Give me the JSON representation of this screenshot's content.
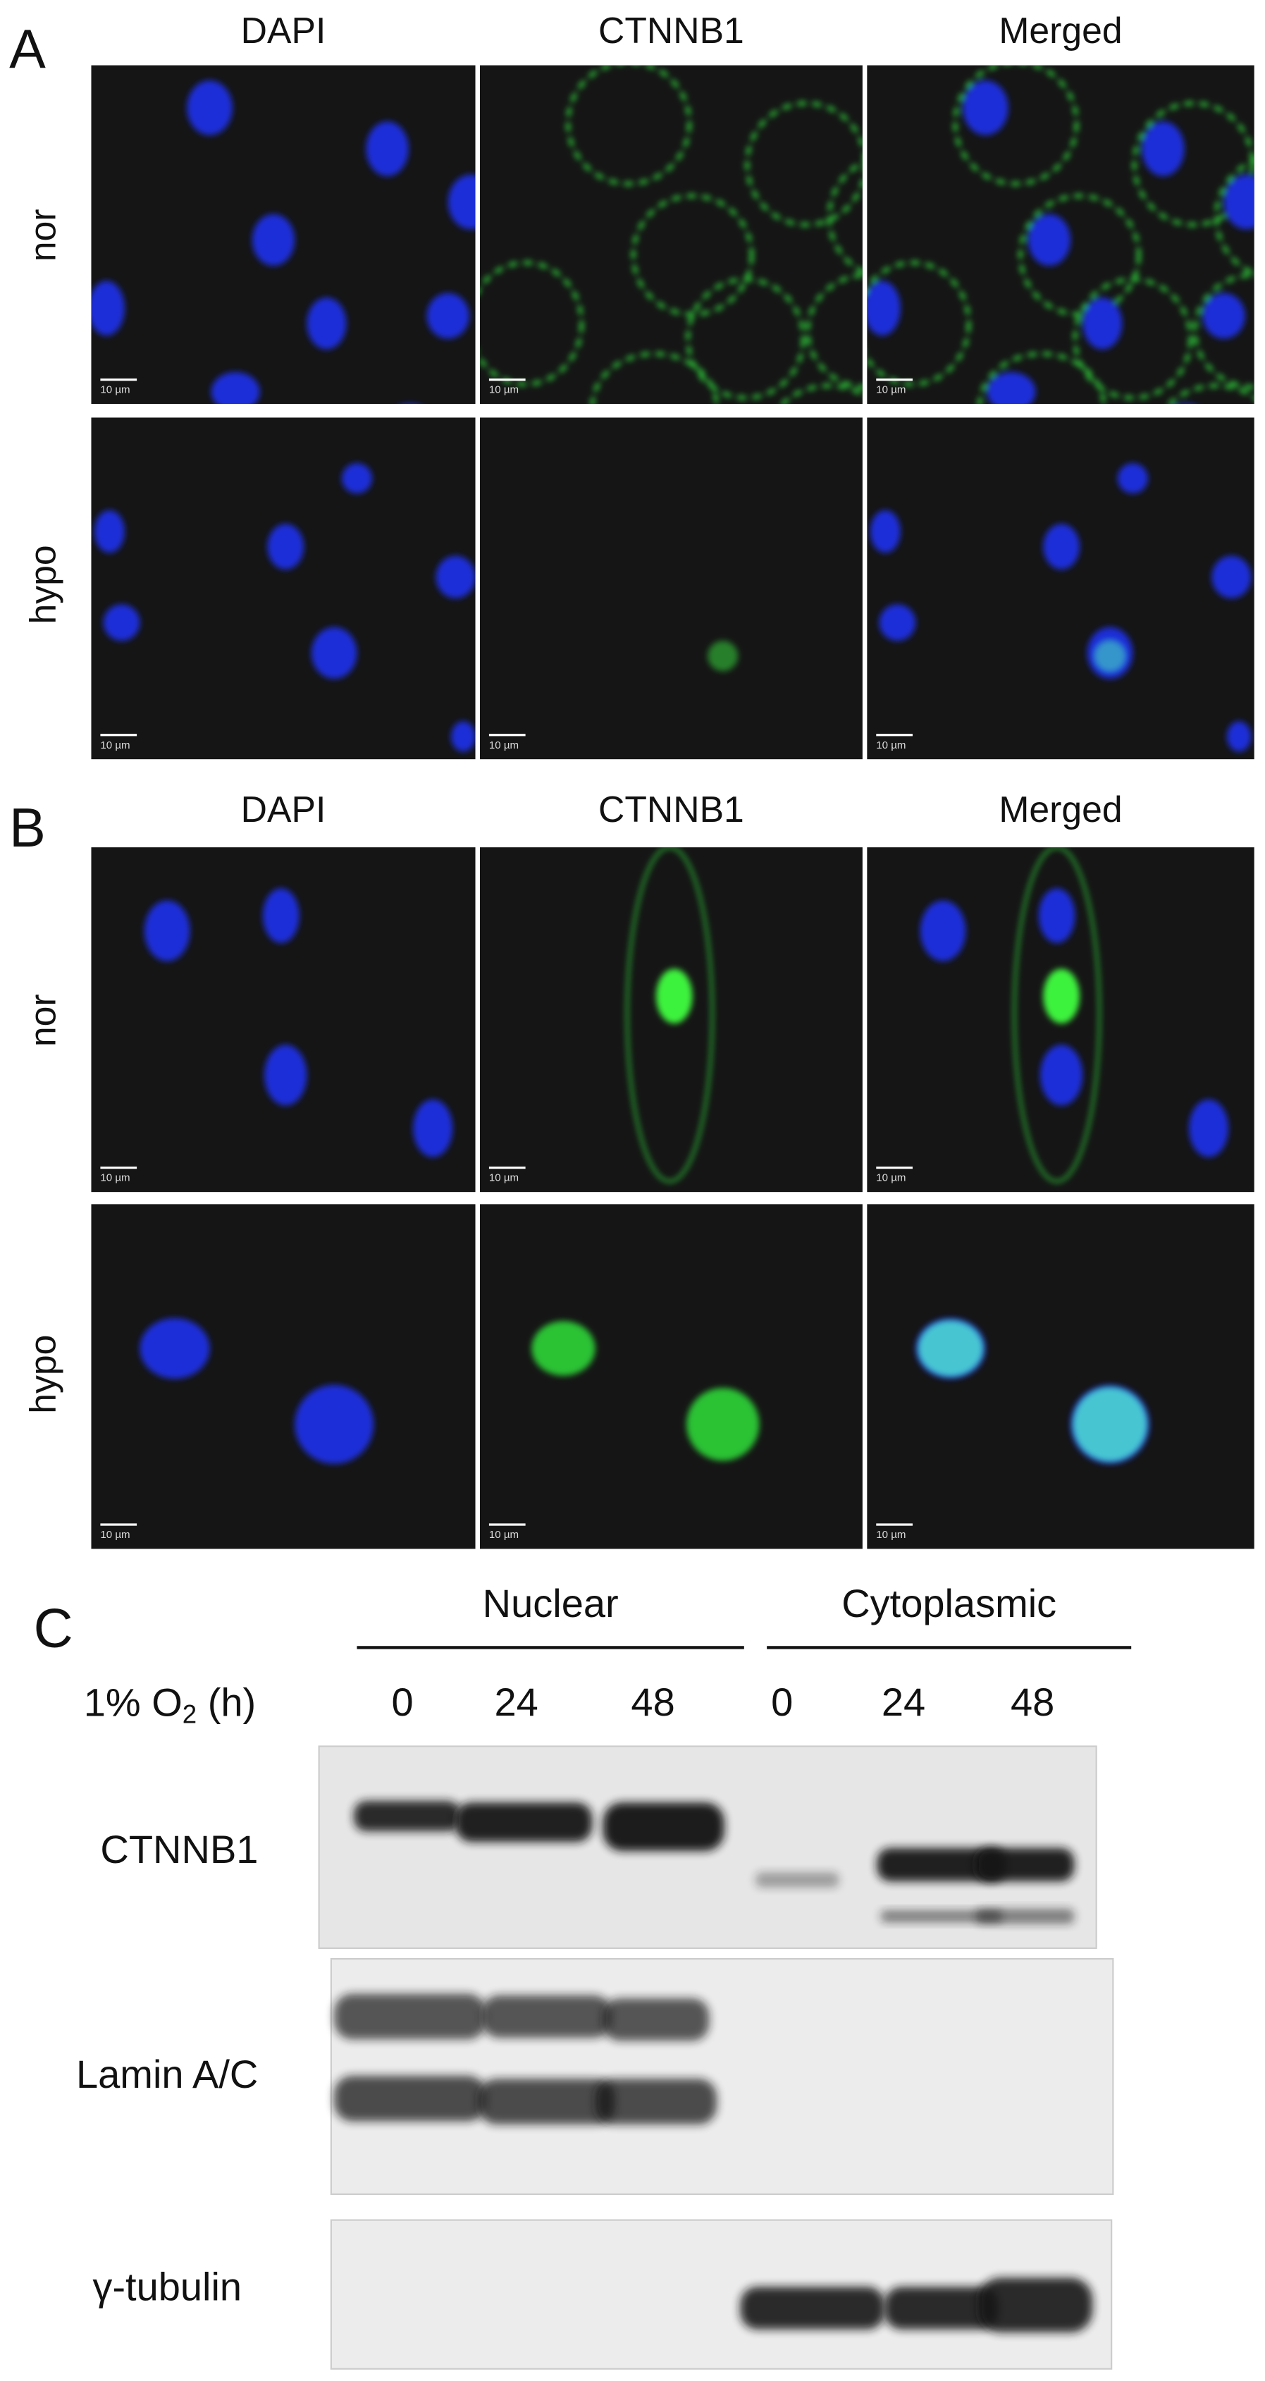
{
  "panels": [
    {
      "label": "A",
      "columns": [
        "DAPI",
        "CTNNB1",
        "Merged"
      ],
      "rows": [
        "nor",
        "hypo"
      ],
      "scale_bar": "10 µm"
    },
    {
      "label": "B",
      "columns": [
        "DAPI",
        "CTNNB1",
        "Merged"
      ],
      "rows": [
        "nor",
        "hypo"
      ],
      "scale_bar": "10 µm"
    }
  ],
  "blot": {
    "label": "C",
    "groups": [
      "Nuclear",
      "Cytoplasmic"
    ],
    "condition": {
      "text": "1% O",
      "subscript": "2",
      "unit": " (h)"
    },
    "lanes": [
      "0",
      "24",
      "48",
      "0",
      "24",
      "48"
    ],
    "proteins": [
      "CTNNB1",
      "Lamin A/C",
      "γ-tubulin"
    ]
  }
}
